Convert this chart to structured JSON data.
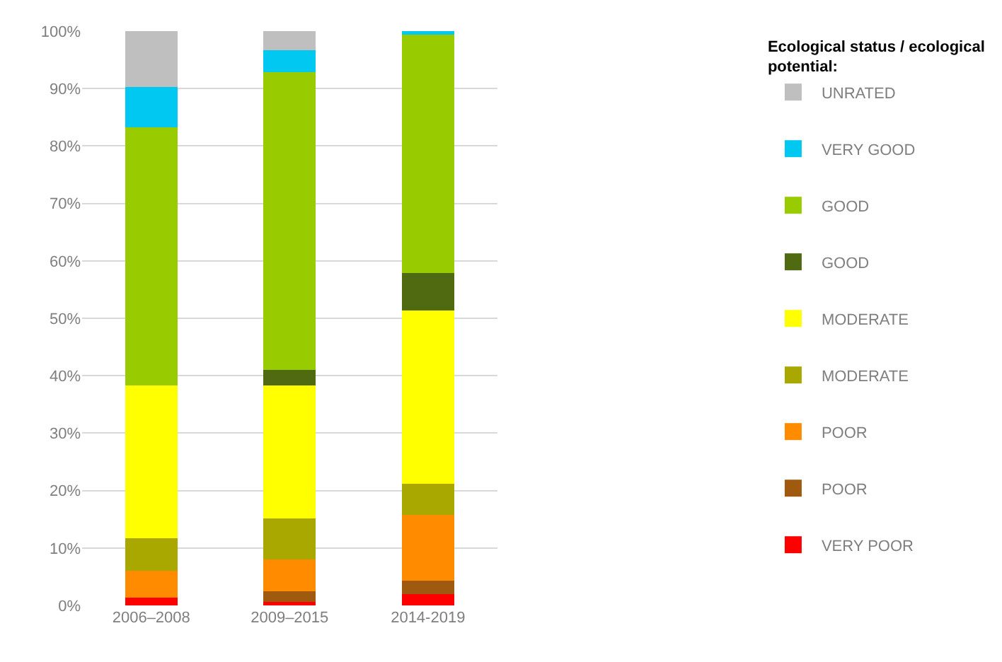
{
  "chart_data": {
    "type": "bar",
    "stacked": true,
    "legend_title": "Ecological status / ecological potential:",
    "categories": [
      "2006–2008",
      "2009–2015",
      "2014-2019"
    ],
    "series": [
      {
        "name": "VERY POOR",
        "color": "#ff0000",
        "values": [
          1.3,
          0.6,
          2.0
        ]
      },
      {
        "name": "POOR",
        "color": "#a05a10",
        "values": [
          0,
          1.9,
          2.3
        ]
      },
      {
        "name": "POOR",
        "color": "#ff8c00",
        "values": [
          4.7,
          5.5,
          11.5
        ]
      },
      {
        "name": "MODERATE",
        "color": "#a8a800",
        "values": [
          5.7,
          7.1,
          5.4
        ]
      },
      {
        "name": "MODERATE",
        "color": "#ffff00",
        "values": [
          26.6,
          23.2,
          30.1
        ]
      },
      {
        "name": "GOOD",
        "color": "#4f6a10",
        "values": [
          0,
          2.7,
          6.6
        ]
      },
      {
        "name": "GOOD",
        "color": "#99cc00",
        "values": [
          44.9,
          51.8,
          41.5
        ]
      },
      {
        "name": "VERY GOOD",
        "color": "#00c8f0",
        "values": [
          7.1,
          3.9,
          0.6
        ]
      },
      {
        "name": "UNRATED",
        "color": "#bfbfbf",
        "values": [
          9.7,
          3.3,
          0
        ]
      }
    ],
    "ylim": [
      0,
      100
    ],
    "yticks": [
      {
        "value": 0,
        "label": "0%"
      },
      {
        "value": 10,
        "label": "10%"
      },
      {
        "value": 20,
        "label": "20%"
      },
      {
        "value": 30,
        "label": "30%"
      },
      {
        "value": 40,
        "label": "40%"
      },
      {
        "value": 50,
        "label": "50%"
      },
      {
        "value": 60,
        "label": "60%"
      },
      {
        "value": 70,
        "label": "70%"
      },
      {
        "value": 80,
        "label": "80%"
      },
      {
        "value": 90,
        "label": "90%"
      },
      {
        "value": 100,
        "label": "100%"
      }
    ],
    "grid": "y",
    "legend": "right"
  }
}
